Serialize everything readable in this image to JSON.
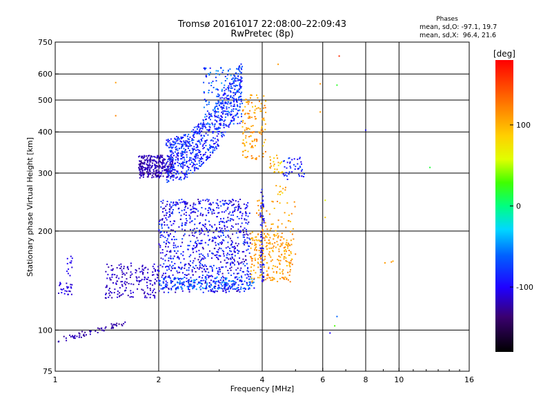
{
  "chart_data": {
    "type": "scatter",
    "title": "Tromsø 20161017 22:08:00–22:09:43",
    "subtitle": "RwPretec (8p)",
    "xlabel": "Frequency [MHz]",
    "ylabel": "Stationary phase Virtual Height [km]",
    "x_scale": "log",
    "y_scale": "log",
    "xlim": [
      1,
      16
    ],
    "ylim": [
      75,
      750
    ],
    "x_ticks": [
      1,
      2,
      4,
      6,
      8,
      10,
      16
    ],
    "y_ticks": [
      75,
      100,
      200,
      300,
      400,
      500,
      600,
      750
    ],
    "x_gridlines": [
      2,
      4,
      6,
      8,
      10
    ],
    "y_gridlines": [
      100,
      200,
      300,
      400,
      500,
      600
    ],
    "grid": true,
    "phases_box": {
      "title": "Phases",
      "line1": "mean, sd,O: -97.1, 19.7",
      "line2": "mean, sd,X:  96.4, 21.6"
    },
    "colorbar": {
      "label": "[deg]",
      "range": [
        -180,
        180
      ],
      "ticks": [
        100,
        0,
        -100
      ],
      "colormap": "rainbow"
    },
    "clusters": [
      {
        "name": "low-E",
        "x": [
          1.02,
          1.6
        ],
        "y": [
          92,
          106
        ],
        "phase": [
          -130,
          -115
        ],
        "n": 60,
        "shape": "line",
        "y_at_xmin": 93,
        "y_at_xmax": 105
      },
      {
        "name": "E-start",
        "x": [
          1.0,
          1.12
        ],
        "y": [
          128,
          140
        ],
        "phase": [
          -120,
          -100
        ],
        "n": 25,
        "shape": "cloud"
      },
      {
        "name": "E-spike",
        "x": [
          1.08,
          1.13
        ],
        "y": [
          145,
          170
        ],
        "phase": [
          -110,
          -95
        ],
        "n": 12,
        "shape": "cloud"
      },
      {
        "name": "E-rise",
        "x": [
          1.4,
          2.0
        ],
        "y": [
          125,
          160
        ],
        "phase": [
          -125,
          -105
        ],
        "n": 180,
        "shape": "cloud"
      },
      {
        "name": "F1-mid",
        "x": [
          2.0,
          3.7
        ],
        "y": [
          130,
          250
        ],
        "phase": [
          -125,
          -70
        ],
        "n": 900,
        "shape": "cloud"
      },
      {
        "name": "F1-floor",
        "x": [
          2.0,
          3.8
        ],
        "y": [
          133,
          145
        ],
        "phase": [
          -100,
          -40
        ],
        "n": 200,
        "shape": "cloud"
      },
      {
        "name": "F1-x",
        "x": [
          3.7,
          4.9
        ],
        "y": [
          140,
          200
        ],
        "phase": [
          90,
          130
        ],
        "n": 200,
        "shape": "cloud"
      },
      {
        "name": "F1-x-upper",
        "x": [
          3.8,
          5.0
        ],
        "y": [
          160,
          250
        ],
        "phase": [
          90,
          125
        ],
        "n": 80,
        "shape": "cloud"
      },
      {
        "name": "F2-nose",
        "x": [
          1.75,
          2.2
        ],
        "y": [
          290,
          340
        ],
        "phase": [
          -130,
          -110
        ],
        "n": 300,
        "shape": "cloud"
      },
      {
        "name": "F2-curve",
        "x": [
          2.1,
          3.5
        ],
        "y": [
          290,
          520
        ],
        "phase": [
          -110,
          -60
        ],
        "n": 700,
        "shape": "cloud"
      },
      {
        "name": "F2-top",
        "x": [
          2.7,
          3.5
        ],
        "y": [
          420,
          630
        ],
        "phase": [
          -100,
          -40
        ],
        "n": 150,
        "shape": "cloud"
      },
      {
        "name": "F2-x",
        "x": [
          3.5,
          4.1
        ],
        "y": [
          330,
          520
        ],
        "phase": [
          90,
          130
        ],
        "n": 130,
        "shape": "cloud"
      },
      {
        "name": "F2-x-tail",
        "x": [
          4.6,
          5.3
        ],
        "y": [
          285,
          335
        ],
        "phase": [
          -110,
          -70
        ],
        "n": 45,
        "shape": "cloud"
      },
      {
        "name": "F2-x-tail2",
        "x": [
          4.2,
          4.6
        ],
        "y": [
          300,
          340
        ],
        "phase": [
          70,
          120
        ],
        "n": 25,
        "shape": "cloud"
      },
      {
        "name": "F2-x-tail3",
        "x": [
          4.3,
          4.7
        ],
        "y": [
          255,
          280
        ],
        "phase": [
          70,
          120
        ],
        "n": 10,
        "shape": "cloud"
      },
      {
        "name": "F1-col4",
        "x": [
          3.95,
          4.05
        ],
        "y": [
          140,
          270
        ],
        "phase": [
          -110,
          -80
        ],
        "n": 60,
        "shape": "cloud"
      }
    ],
    "outliers": [
      {
        "x": 1.5,
        "y": 565,
        "phase": 110
      },
      {
        "x": 1.5,
        "y": 448,
        "phase": 120
      },
      {
        "x": 6.7,
        "y": 680,
        "phase": 160
      },
      {
        "x": 6.6,
        "y": 555,
        "phase": 20
      },
      {
        "x": 8.0,
        "y": 405,
        "phase": -95
      },
      {
        "x": 12.3,
        "y": 312,
        "phase": 15
      },
      {
        "x": 6.3,
        "y": 98,
        "phase": -100
      },
      {
        "x": 6.5,
        "y": 103,
        "phase": 30
      },
      {
        "x": 6.6,
        "y": 110,
        "phase": -60
      },
      {
        "x": 9.1,
        "y": 160,
        "phase": 110
      },
      {
        "x": 9.5,
        "y": 161,
        "phase": 115
      },
      {
        "x": 9.6,
        "y": 162,
        "phase": 105
      },
      {
        "x": 6.1,
        "y": 248,
        "phase": 60
      },
      {
        "x": 6.1,
        "y": 220,
        "phase": 90
      },
      {
        "x": 5.9,
        "y": 460,
        "phase": 110
      },
      {
        "x": 5.9,
        "y": 560,
        "phase": 115
      },
      {
        "x": 4.45,
        "y": 642,
        "phase": 110
      },
      {
        "x": 4.3,
        "y": 210,
        "phase": 100
      }
    ]
  }
}
